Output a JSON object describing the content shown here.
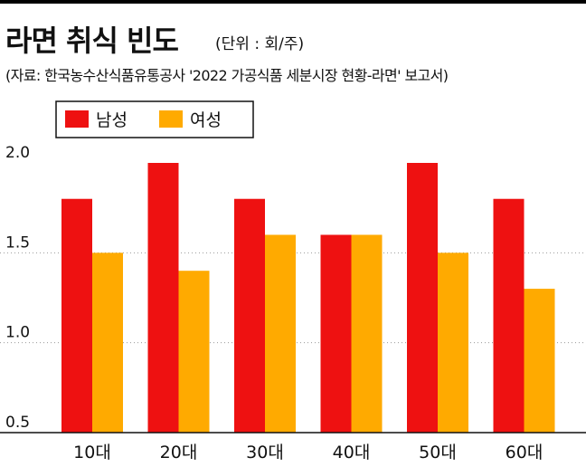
{
  "header": {
    "title": "라면 취식 빈도",
    "unit": "(단위 : 회/주)",
    "source": "(자료: 한국농수산식품유통공사 '2022 가공식품 세분시장 현황-라면' 보고서)"
  },
  "chart_data": {
    "type": "bar",
    "title": "라면 취식 빈도",
    "unit": "(단위 : 회/주)",
    "categories": [
      "10대",
      "20대",
      "30대",
      "40대",
      "50대",
      "60대"
    ],
    "series": [
      {
        "name": "남성",
        "color": "#ee1111",
        "values": [
          1.8,
          2.0,
          1.8,
          1.6,
          2.0,
          1.8
        ]
      },
      {
        "name": "여성",
        "color": "#ffaa00",
        "values": [
          1.5,
          1.4,
          1.6,
          1.6,
          1.5,
          1.3
        ]
      }
    ],
    "ylim": [
      0.5,
      2.0
    ],
    "yticks": [
      "2.0",
      "1.5",
      "1.0",
      "0.5"
    ],
    "grid": true,
    "legend": "top-left"
  }
}
